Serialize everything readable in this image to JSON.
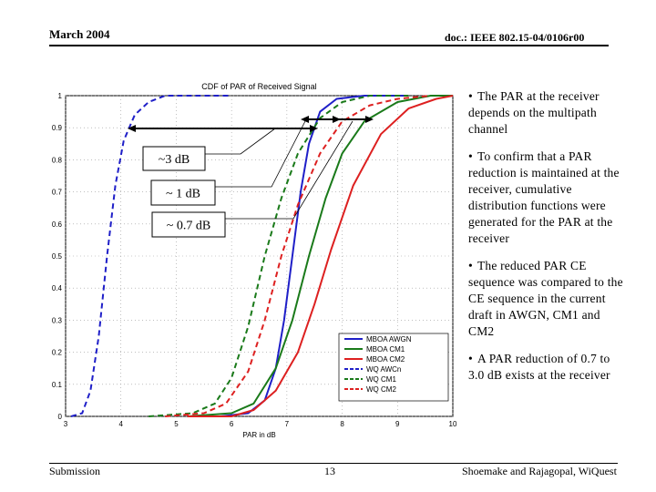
{
  "header": {
    "date": "March 2004",
    "doc": "doc.: IEEE 802.15-04/0106r00"
  },
  "footer": {
    "left": "Submission",
    "page": "13",
    "right": "Shoemake and Rajagopal, WiQuest"
  },
  "bullets": [
    "The PAR at the receiver depends on the multipath channel",
    "To confirm that a PAR reduction is maintained at the receiver, cumulative distribution functions were generated for the PAR at the receiver",
    "The reduced PAR CE sequence was compared to the CE sequence in the current draft in AWGN, CM1 and CM2",
    "A PAR reduction of 0.7 to 3.0 dB exists at the receiver"
  ],
  "annotations": {
    "a1": "~3 dB",
    "a2": "~ 1 dB",
    "a3": "~ 0.7 dB"
  },
  "colors": {
    "blue": "#1f1fc8",
    "green": "#1a7a1a",
    "red": "#dd2020"
  },
  "chart_data": {
    "type": "line",
    "title": "CDF of PAR of Received Signal",
    "xlabel": "PAR in dB",
    "ylabel": "",
    "xlim": [
      3,
      10
    ],
    "ylim": [
      0,
      1
    ],
    "x_ticks": [
      "3",
      "4",
      "5",
      "6",
      "7",
      "8",
      "9",
      "10"
    ],
    "y_ticks": [
      "0",
      "0.1",
      "0.2",
      "0.3",
      "0.4",
      "0.5",
      "0.6",
      "0.7",
      "0.8",
      "0.9",
      "1"
    ],
    "grid": true,
    "legend_position": "bottom-right",
    "series": [
      {
        "name": "MBOA AWGN",
        "color": "blue",
        "style": "solid",
        "x": [
          5.2,
          5.8,
          6.3,
          6.6,
          6.8,
          6.95,
          7.1,
          7.25,
          7.4,
          7.6,
          7.9,
          8.4,
          9.2
        ],
        "y": [
          0,
          0,
          0.01,
          0.05,
          0.15,
          0.3,
          0.5,
          0.7,
          0.85,
          0.95,
          0.99,
          1.0,
          1.0
        ]
      },
      {
        "name": "MBOA CM1",
        "color": "green",
        "style": "solid",
        "x": [
          5.2,
          6.0,
          6.4,
          6.8,
          7.1,
          7.4,
          7.7,
          8.0,
          8.4,
          9.0,
          9.6,
          10.0
        ],
        "y": [
          0,
          0.01,
          0.04,
          0.15,
          0.3,
          0.5,
          0.68,
          0.82,
          0.92,
          0.98,
          1.0,
          1.0
        ]
      },
      {
        "name": "MBOA CM2",
        "color": "red",
        "style": "solid",
        "x": [
          5.2,
          6.0,
          6.4,
          6.8,
          7.2,
          7.5,
          7.8,
          8.2,
          8.7,
          9.2,
          9.7,
          10.0
        ],
        "y": [
          0,
          0.0,
          0.02,
          0.08,
          0.2,
          0.35,
          0.52,
          0.72,
          0.88,
          0.96,
          0.99,
          1.0
        ]
      },
      {
        "name": "WQ AWCn",
        "color": "blue",
        "style": "dashed",
        "x": [
          3.1,
          3.3,
          3.45,
          3.6,
          3.75,
          3.9,
          4.05,
          4.25,
          4.5,
          4.8,
          5.2,
          6.0
        ],
        "y": [
          0,
          0.01,
          0.08,
          0.25,
          0.5,
          0.72,
          0.86,
          0.94,
          0.98,
          1.0,
          1.0,
          1.0
        ]
      },
      {
        "name": "WQ CM1",
        "color": "green",
        "style": "dashed",
        "x": [
          4.5,
          5.3,
          5.7,
          6.0,
          6.3,
          6.6,
          6.9,
          7.2,
          7.6,
          8.0,
          8.5,
          9.2
        ],
        "y": [
          0,
          0.01,
          0.04,
          0.12,
          0.28,
          0.5,
          0.68,
          0.82,
          0.93,
          0.98,
          1.0,
          1.0
        ]
      },
      {
        "name": "WQ CM2",
        "color": "red",
        "style": "dashed",
        "x": [
          4.8,
          5.5,
          5.9,
          6.3,
          6.6,
          6.9,
          7.2,
          7.6,
          8.0,
          8.5,
          9.0,
          9.6
        ],
        "y": [
          0,
          0.01,
          0.04,
          0.14,
          0.3,
          0.5,
          0.66,
          0.82,
          0.92,
          0.97,
          0.99,
          1.0
        ]
      }
    ]
  }
}
